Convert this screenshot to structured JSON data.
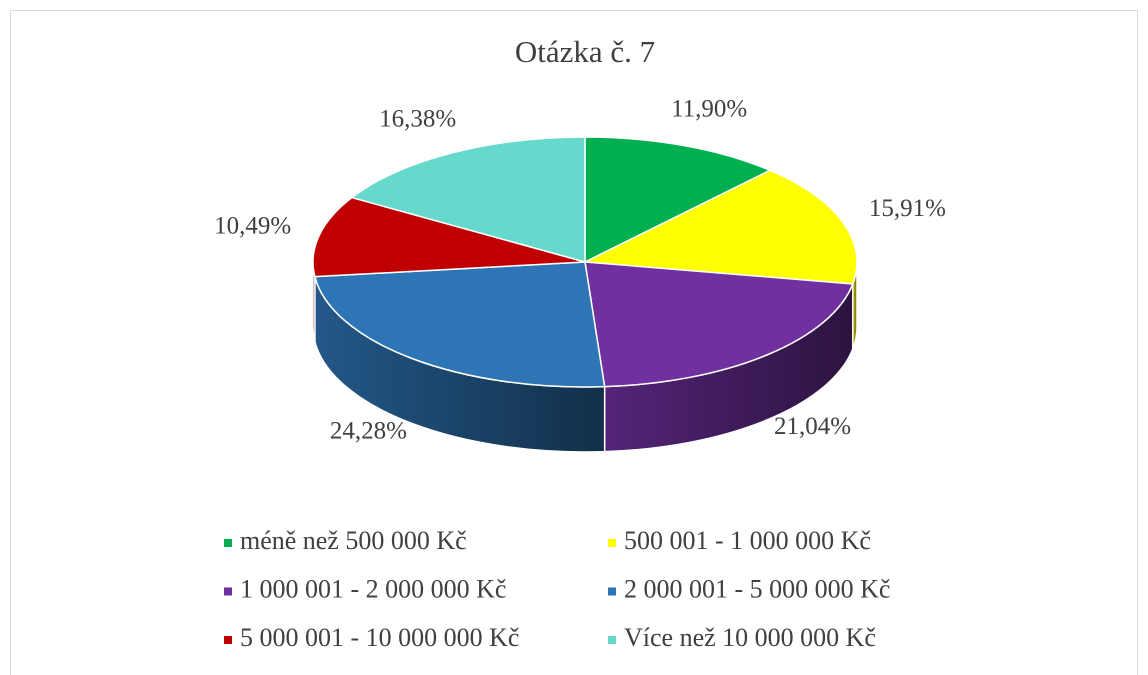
{
  "chart_data": {
    "type": "pie3d",
    "title": "Otázka č. 7",
    "categories": [
      "méně než 500 000 Kč",
      "500 001 - 1 000 000 Kč",
      "1 000 001 - 2 000 000 Kč",
      "2 000 001 - 5 000 000 Kč",
      "5 000 001 - 10 000 000 Kč",
      "Více než 10 000 000 Kč"
    ],
    "values": [
      11.9,
      15.91,
      21.04,
      24.28,
      10.49,
      16.38
    ],
    "value_labels": [
      "11,90%",
      "15,91%",
      "21,04%",
      "24,28%",
      "10,49%",
      "16,38%"
    ],
    "colors": [
      "#00b050",
      "#ffff00",
      "#7030a0",
      "#2e75b6",
      "#c00000",
      "#66d9cc"
    ],
    "legend": "bottom"
  }
}
